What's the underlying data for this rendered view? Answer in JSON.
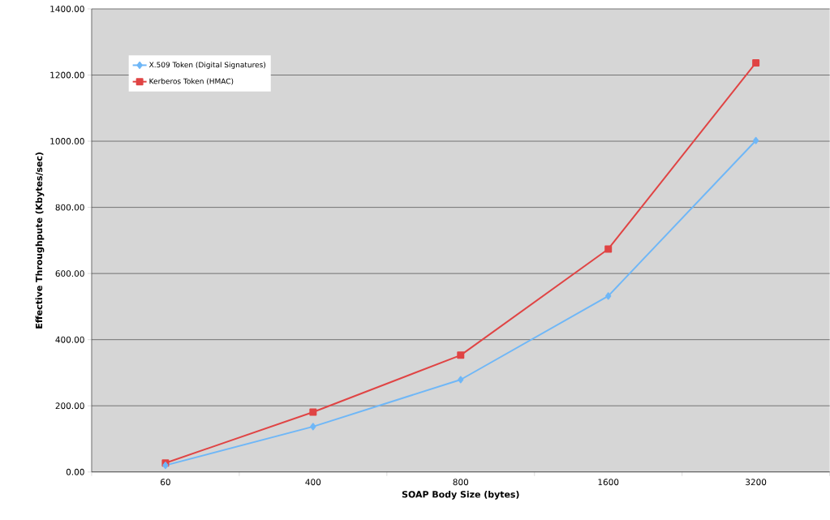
{
  "chart_data": {
    "type": "line",
    "xlabel": "SOAP Body Size (bytes)",
    "ylabel": "Effective Throughpute (Kbytes/sec)",
    "categories": [
      "60",
      "400",
      "800",
      "1600",
      "3200"
    ],
    "series": [
      {
        "name": "X.509 Token (Digital Signatures)",
        "color": "#6fb7f7",
        "marker": "diamond",
        "values": [
          20,
          137,
          279,
          532,
          1002
        ]
      },
      {
        "name": "Kerberos Token (HMAC)",
        "color": "#e04444",
        "marker": "square",
        "values": [
          27,
          181,
          353,
          674,
          1237
        ]
      }
    ],
    "ylim": [
      0,
      1400
    ],
    "yticks": [
      {
        "value": 0,
        "label": "0.00"
      },
      {
        "value": 200,
        "label": "200.00"
      },
      {
        "value": 400,
        "label": "400.00"
      },
      {
        "value": 600,
        "label": "600.00"
      },
      {
        "value": 800,
        "label": "800.00"
      },
      {
        "value": 1000,
        "label": "1000.00"
      },
      {
        "value": 1200,
        "label": "1200.00"
      },
      {
        "value": 1400,
        "label": "1400.00"
      }
    ],
    "grid": "y",
    "legend": "top left",
    "line_style": "solid"
  }
}
